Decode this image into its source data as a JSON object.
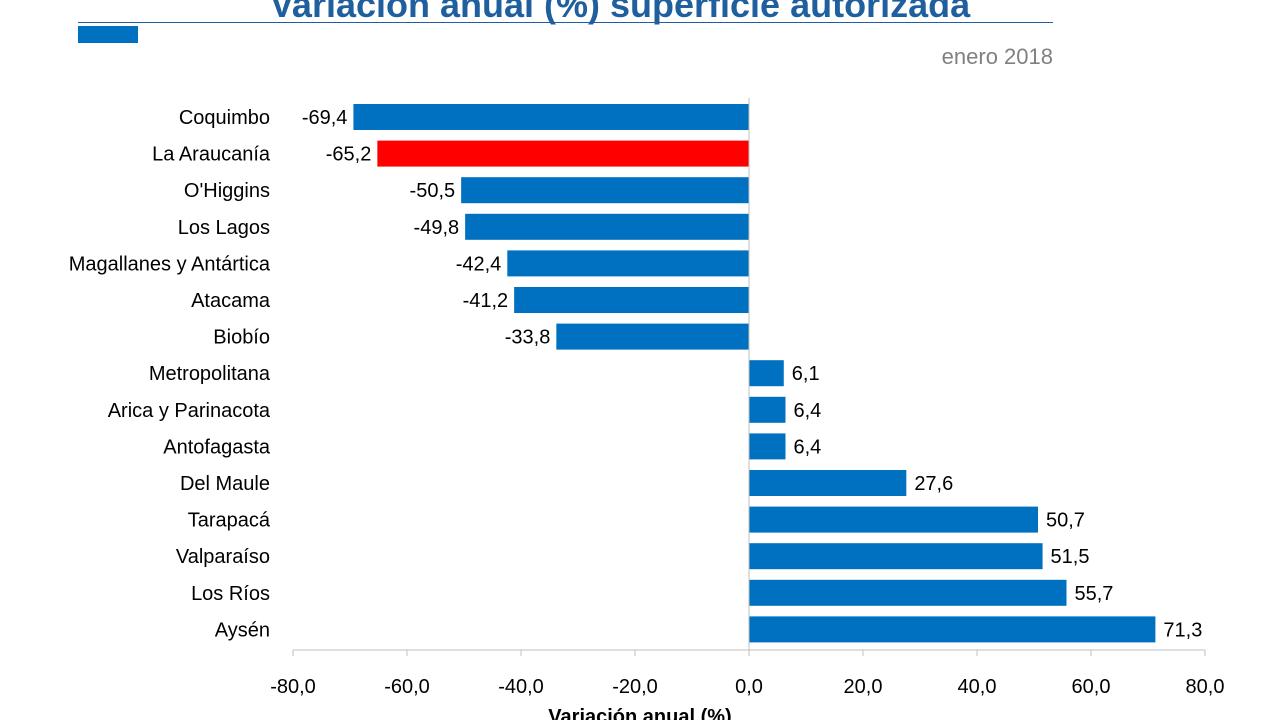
{
  "title": "Variación anual (%) superficie autorizada",
  "subtitle": "enero 2018",
  "colors": {
    "bar": "#0070c0",
    "highlight": "#ff0000",
    "title": "#1f5f9e",
    "subtitle": "#808080"
  },
  "chart_data": {
    "type": "bar",
    "orientation": "horizontal",
    "title": "Variación anual (%) superficie autorizada",
    "subtitle": "enero 2018",
    "xlabel": "Variación anual (%)",
    "ylabel": "",
    "xlim": [
      -80,
      80
    ],
    "x_ticks": [
      "-80,0",
      "-60,0",
      "-40,0",
      "-20,0",
      "0,0",
      "20,0",
      "40,0",
      "60,0",
      "80,0"
    ],
    "x_tick_values": [
      -80,
      -60,
      -40,
      -20,
      0,
      20,
      40,
      60,
      80
    ],
    "grid": false,
    "categories": [
      "Coquimbo",
      "La Araucanía",
      "O'Higgins",
      "Los Lagos",
      "Magallanes y Antártica",
      "Atacama",
      "Biobío",
      "Metropolitana",
      "Arica y Parinacota",
      "Antofagasta",
      "Del Maule",
      "Tarapacá",
      "Valparaíso",
      "Los Ríos",
      "Aysén"
    ],
    "values": [
      -69.4,
      -65.2,
      -50.5,
      -49.8,
      -42.4,
      -41.2,
      -33.8,
      6.1,
      6.4,
      6.4,
      27.6,
      50.7,
      51.5,
      55.7,
      71.3
    ],
    "value_labels": [
      "-69,4",
      "-65,2",
      "-50,5",
      "-49,8",
      "-42,4",
      "-41,2",
      "-33,8",
      "6,1",
      "6,4",
      "6,4",
      "27,6",
      "50,7",
      "51,5",
      "55,7",
      "71,3"
    ],
    "highlight_category": "La Araucanía"
  }
}
